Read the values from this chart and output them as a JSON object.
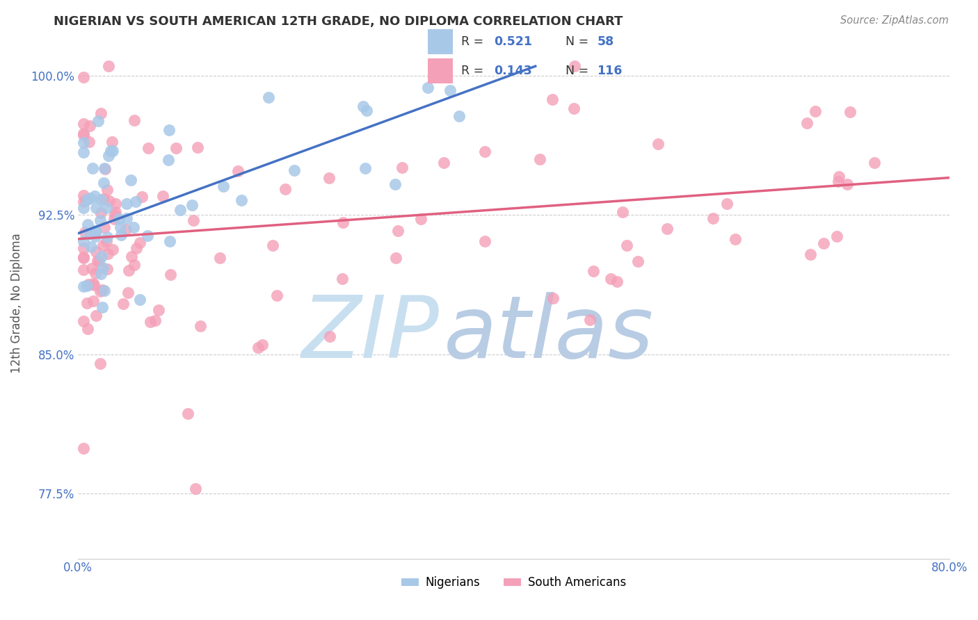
{
  "title": "NIGERIAN VS SOUTH AMERICAN 12TH GRADE, NO DIPLOMA CORRELATION CHART",
  "source": "Source: ZipAtlas.com",
  "ylabel": "12th Grade, No Diploma",
  "xlim": [
    0.0,
    0.8
  ],
  "ylim": [
    0.74,
    1.015
  ],
  "xticks": [
    0.0,
    0.1,
    0.2,
    0.3,
    0.4,
    0.5,
    0.6,
    0.7,
    0.8
  ],
  "yticks": [
    0.775,
    0.85,
    0.925,
    1.0
  ],
  "yticklabels": [
    "77.5%",
    "85.0%",
    "92.5%",
    "100.0%"
  ],
  "r_nigerian": 0.521,
  "n_nigerian": 58,
  "r_south_american": 0.143,
  "n_south_american": 116,
  "nigerian_color": "#a8c8e8",
  "south_american_color": "#f4a0b8",
  "trend_nigerian_color": "#4472c4",
  "trend_south_american_color": "#e06080",
  "watermark_zip_color": "#c8dff0",
  "watermark_atlas_color": "#b8cce4",
  "legend_box_color": "white",
  "trend_nig_x0": 0.0,
  "trend_nig_y0": 0.915,
  "trend_nig_x1": 0.42,
  "trend_nig_y1": 1.005,
  "trend_sa_x0": 0.0,
  "trend_sa_y0": 0.912,
  "trend_sa_x1": 0.8,
  "trend_sa_y1": 0.945
}
